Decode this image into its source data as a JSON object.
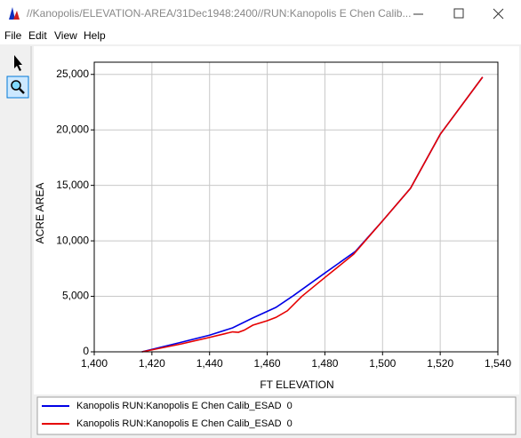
{
  "window": {
    "title": "//Kanopolis/ELEVATION-AREA/31Dec1948:2400//RUN:Kanopolis E Chen Calib...",
    "menu": [
      "File",
      "Edit",
      "View",
      "Help"
    ]
  },
  "chart_data": {
    "type": "line",
    "x_label": "FT ELEVATION",
    "y_label": "ACRE AREA",
    "xlim": [
      1400,
      1540
    ],
    "xticks": [
      {
        "value": 1400,
        "label": "1,400"
      },
      {
        "value": 1420,
        "label": "1,420"
      },
      {
        "value": 1440,
        "label": "1,440"
      },
      {
        "value": 1460,
        "label": "1,460"
      },
      {
        "value": 1480,
        "label": "1,480"
      },
      {
        "value": 1500,
        "label": "1,500"
      },
      {
        "value": 1520,
        "label": "1,520"
      },
      {
        "value": 1540,
        "label": "1,540"
      }
    ],
    "ylim": [
      0,
      26100
    ],
    "yticks": [
      0,
      {
        "value": 5000,
        "label": "5,000"
      },
      {
        "value": 10000,
        "label": "10,000"
      },
      {
        "value": 15000,
        "label": "15,000"
      },
      {
        "value": 20000,
        "label": "20,000"
      },
      {
        "value": 25000,
        "label": "25,000"
      }
    ],
    "grid": true,
    "series": [
      {
        "name": "Kanopolis RUN:Kanopolis E Chen Calib_ESAD  0",
        "color": "#0000e6",
        "x": [
          1416.5,
          1430,
          1440,
          1448,
          1455,
          1463,
          1469,
          1480,
          1490.6,
          1500,
          1509.7,
          1520,
          1534.7
        ],
        "values": [
          0,
          850,
          1500,
          2160,
          3050,
          4000,
          5050,
          7100,
          9050,
          11800,
          14740,
          19600,
          24760
        ]
      },
      {
        "name": "Kanopolis RUN:Kanopolis E Chen Calib_ESAD  0",
        "color": "#e60000",
        "x": [
          1416.6,
          1430,
          1440,
          1448,
          1450,
          1452,
          1455,
          1460,
          1463,
          1467,
          1472,
          1480,
          1490,
          1500,
          1509.7,
          1520,
          1534.7
        ],
        "values": [
          0,
          700,
          1300,
          1800,
          1760,
          1950,
          2400,
          2800,
          3100,
          3700,
          5000,
          6700,
          8800,
          11800,
          14740,
          19600,
          24760
        ]
      }
    ]
  }
}
